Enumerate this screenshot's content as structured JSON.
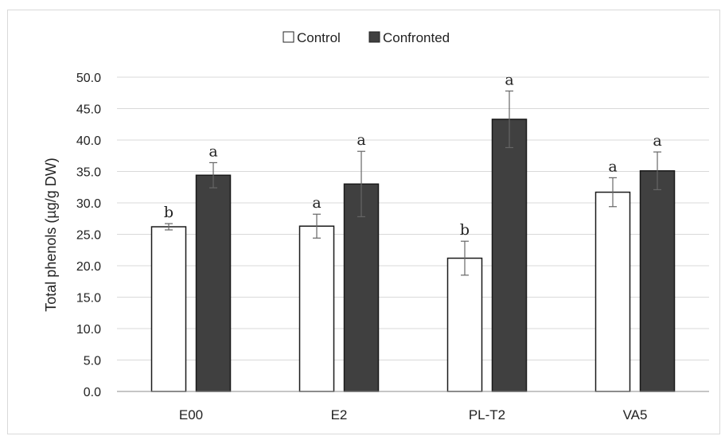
{
  "chart_data": {
    "type": "bar",
    "title": "",
    "xlabel": "",
    "ylabel": "Total phenols (µg/g DW)",
    "categories": [
      "E00",
      "E2",
      "PL-T2",
      "VA5"
    ],
    "ylim": [
      0,
      50
    ],
    "yticks": [
      "0.0",
      "5.0",
      "10.0",
      "15.0",
      "20.0",
      "25.0",
      "30.0",
      "35.0",
      "40.0",
      "45.0",
      "50.0"
    ],
    "grid": true,
    "legend_position": "top-center",
    "series": [
      {
        "name": "Control",
        "color": "#ffffff",
        "values": [
          26.2,
          26.3,
          21.2,
          31.7
        ],
        "errors": [
          0.5,
          1.9,
          2.7,
          2.3
        ],
        "labels": [
          "b",
          "a",
          "b",
          "a"
        ]
      },
      {
        "name": "Confronted",
        "color": "#404040",
        "values": [
          34.4,
          33.0,
          43.3,
          35.1
        ],
        "errors": [
          2.0,
          5.2,
          4.5,
          3.0
        ],
        "labels": [
          "a",
          "a",
          "a",
          "a"
        ]
      }
    ]
  }
}
